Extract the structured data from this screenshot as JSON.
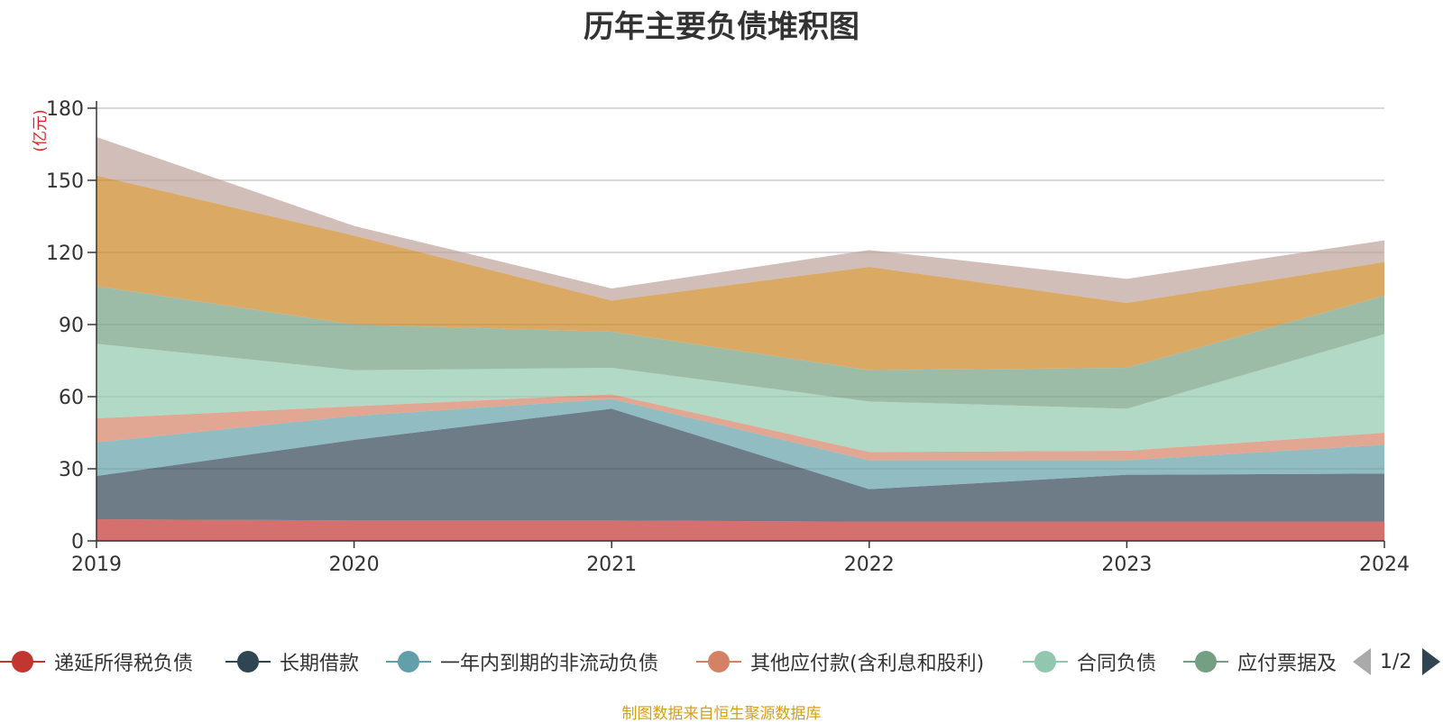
{
  "chart_data": {
    "type": "area",
    "stacked": true,
    "title": "历年主要负债堆积图",
    "unit_label": "(亿元)",
    "x": [
      "2019",
      "2020",
      "2021",
      "2022",
      "2023",
      "2024"
    ],
    "ylim": [
      0,
      180
    ],
    "yticks": [
      0,
      30,
      60,
      90,
      120,
      150,
      180
    ],
    "grid": true,
    "legend_position": "bottom",
    "series": [
      {
        "name": "递延所得税负债",
        "color": "#c23531",
        "values": [
          9,
          8.5,
          8.5,
          8,
          8,
          8
        ]
      },
      {
        "name": "长期借款",
        "color": "#2f4554",
        "values": [
          18,
          33.5,
          46.5,
          13.5,
          19.5,
          20
        ]
      },
      {
        "name": "一年内到期的非流动负债",
        "color": "#61a0a8",
        "values": [
          14,
          10,
          4,
          12,
          6,
          12
        ]
      },
      {
        "name": "其他应付款(含利息和股利)",
        "color": "#d48265",
        "values": [
          10,
          4,
          2,
          3.5,
          4,
          5
        ]
      },
      {
        "name": "合同负债",
        "color": "#91c7ae",
        "values": [
          31,
          15,
          11,
          21,
          17.5,
          41
        ]
      },
      {
        "name": "应付票据及应付账款",
        "color": "#749f83",
        "values": [
          24,
          19,
          15,
          13,
          17,
          16
        ]
      },
      {
        "name": "",
        "color": "#ca8622",
        "values": [
          46,
          37,
          13,
          43,
          27,
          14
        ]
      },
      {
        "name": "",
        "color": "#bda29a",
        "values": [
          16,
          4,
          5,
          7,
          10,
          9
        ]
      }
    ]
  },
  "legend": {
    "visible_items": [
      "递延所得税负债",
      "长期借款",
      "一年内到期的非流动负债",
      "其他应付款(含利息和股利)",
      "合同负债",
      "应付票据及"
    ],
    "page_text": "1/2"
  },
  "source_note": "制图数据来自恒生聚源数据库"
}
